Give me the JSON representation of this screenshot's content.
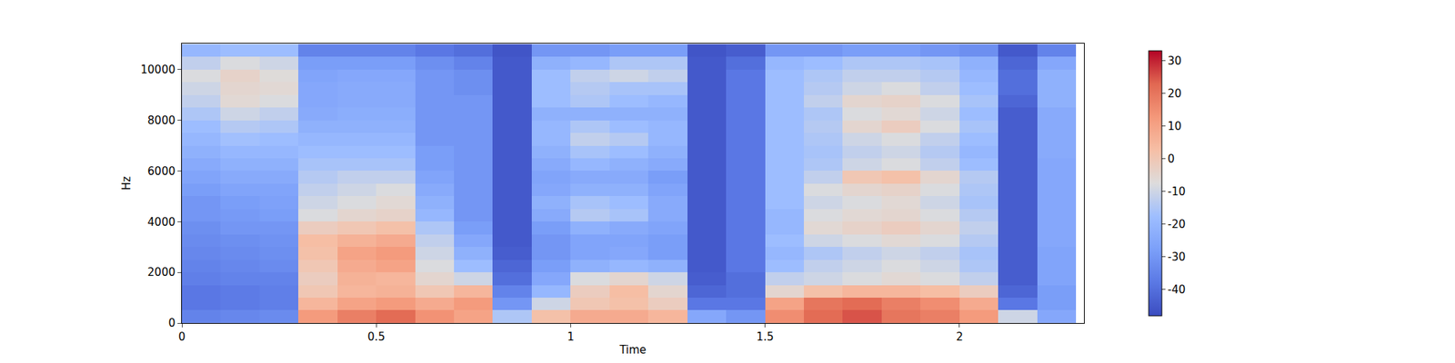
{
  "chart_data": {
    "type": "heatmap",
    "x_label": "Time",
    "y_label": "Hz",
    "x": [
      0.05,
      0.15,
      0.25,
      0.35,
      0.45,
      0.55,
      0.65,
      0.75,
      0.85,
      0.95,
      1.05,
      1.15,
      1.25,
      1.35,
      1.45,
      1.55,
      1.65,
      1.75,
      1.85,
      1.95,
      2.05,
      2.15,
      2.25
    ],
    "y": [
      250,
      750,
      1250,
      1750,
      2250,
      2750,
      3250,
      3750,
      4250,
      4750,
      5250,
      5750,
      6250,
      6750,
      7250,
      7750,
      8250,
      8750,
      9250,
      9750,
      10250,
      10750
    ],
    "cells_by_time": [
      [
        -35,
        -38,
        -38,
        -36,
        -35,
        -34,
        -33,
        -32,
        -30,
        -30,
        -28,
        -26,
        -24,
        -22,
        -20,
        -18,
        -15,
        -12,
        -10,
        -8,
        -12,
        -20
      ],
      [
        -34,
        -37,
        -37,
        -35,
        -34,
        -33,
        -32,
        -30,
        -29,
        -28,
        -26,
        -24,
        -22,
        -20,
        -17,
        -14,
        -10,
        -6,
        -5,
        -4,
        -8,
        -18
      ],
      [
        -33,
        -36,
        -36,
        -35,
        -33,
        -32,
        -31,
        -30,
        -28,
        -27,
        -26,
        -24,
        -22,
        -20,
        -18,
        -15,
        -12,
        -8,
        -6,
        -7,
        -10,
        -18
      ],
      [
        12,
        5,
        0,
        -2,
        0,
        2,
        3,
        -2,
        -8,
        -10,
        -12,
        -14,
        -16,
        -18,
        -20,
        -22,
        -24,
        -25,
        -25,
        -26,
        -28,
        -35
      ],
      [
        18,
        10,
        5,
        6,
        8,
        10,
        6,
        0,
        -5,
        -8,
        -10,
        -12,
        -16,
        -18,
        -20,
        -22,
        -23,
        -24,
        -24,
        -25,
        -28,
        -35
      ],
      [
        22,
        12,
        6,
        5,
        10,
        12,
        8,
        2,
        -4,
        -6,
        -8,
        -12,
        -16,
        -18,
        -20,
        -22,
        -23,
        -24,
        -24,
        -25,
        -28,
        -35
      ],
      [
        14,
        8,
        0,
        -5,
        -8,
        -10,
        -12,
        -15,
        -20,
        -22,
        -24,
        -26,
        -28,
        -28,
        -30,
        -30,
        -30,
        -30,
        -30,
        -30,
        -32,
        -38
      ],
      [
        10,
        12,
        5,
        -10,
        -18,
        -22,
        -25,
        -28,
        -30,
        -30,
        -30,
        -30,
        -30,
        -30,
        -30,
        -30,
        -30,
        -30,
        -32,
        -32,
        -35,
        -40
      ],
      [
        -15,
        -30,
        -35,
        -40,
        -42,
        -44,
        -45,
        -45,
        -45,
        -45,
        -45,
        -45,
        -45,
        -45,
        -45,
        -45,
        -45,
        -45,
        -45,
        -45,
        -45,
        -46
      ],
      [
        2,
        -10,
        -20,
        -25,
        -28,
        -30,
        -30,
        -28,
        -24,
        -22,
        -25,
        -26,
        -24,
        -22,
        -20,
        -20,
        -22,
        -18,
        -18,
        -18,
        -22,
        -30
      ],
      [
        8,
        0,
        -2,
        -8,
        -22,
        -26,
        -26,
        -22,
        -14,
        -16,
        -22,
        -24,
        -20,
        -16,
        -12,
        -15,
        -22,
        -15,
        -14,
        -12,
        -20,
        -30
      ],
      [
        8,
        2,
        3,
        -5,
        -20,
        -25,
        -26,
        -24,
        -16,
        -18,
        -22,
        -24,
        -22,
        -18,
        -14,
        -18,
        -22,
        -18,
        -16,
        -10,
        -15,
        -28
      ],
      [
        5,
        -2,
        -5,
        -10,
        -22,
        -28,
        -28,
        -26,
        -24,
        -24,
        -26,
        -28,
        -24,
        -22,
        -20,
        -20,
        -22,
        -20,
        -16,
        -12,
        -15,
        -28
      ],
      [
        -25,
        -38,
        -42,
        -44,
        -45,
        -45,
        -45,
        -45,
        -45,
        -45,
        -45,
        -45,
        -45,
        -45,
        -45,
        -45,
        -45,
        -45,
        -45,
        -45,
        -45,
        -46
      ],
      [
        -30,
        -38,
        -40,
        -40,
        -38,
        -38,
        -38,
        -38,
        -38,
        -38,
        -38,
        -38,
        -38,
        -38,
        -38,
        -38,
        -38,
        -38,
        -38,
        -38,
        -40,
        -44
      ],
      [
        15,
        10,
        -5,
        -12,
        -18,
        -20,
        -18,
        -20,
        -20,
        -18,
        -18,
        -18,
        -18,
        -18,
        -18,
        -18,
        -18,
        -18,
        -18,
        -18,
        -20,
        -30
      ],
      [
        22,
        20,
        2,
        -10,
        -12,
        -15,
        -10,
        -6,
        -8,
        -10,
        -8,
        -12,
        -15,
        -16,
        -15,
        -14,
        -15,
        -12,
        -14,
        -15,
        -18,
        -30
      ],
      [
        25,
        22,
        5,
        -8,
        -10,
        -12,
        -8,
        -4,
        -6,
        -8,
        -5,
        0,
        -10,
        -12,
        -10,
        -5,
        -8,
        -5,
        -10,
        -12,
        -15,
        -28
      ],
      [
        20,
        18,
        5,
        -6,
        -8,
        -10,
        -6,
        -2,
        -5,
        -6,
        -4,
        2,
        -8,
        -10,
        -8,
        -2,
        -6,
        -4,
        -8,
        -12,
        -15,
        -28
      ],
      [
        18,
        15,
        3,
        -8,
        -10,
        -12,
        -8,
        -5,
        -8,
        -10,
        -8,
        -5,
        -12,
        -14,
        -12,
        -8,
        -10,
        -8,
        -12,
        -14,
        -16,
        -30
      ],
      [
        12,
        8,
        -2,
        -12,
        -15,
        -16,
        -14,
        -12,
        -14,
        -16,
        -15,
        -14,
        -18,
        -20,
        -18,
        -16,
        -18,
        -16,
        -18,
        -20,
        -22,
        -32
      ],
      [
        -10,
        -38,
        -42,
        -44,
        -44,
        -44,
        -44,
        -44,
        -44,
        -44,
        -44,
        -44,
        -44,
        -44,
        -44,
        -44,
        -44,
        -42,
        -40,
        -40,
        -42,
        -45
      ],
      [
        -25,
        -28,
        -28,
        -26,
        -26,
        -26,
        -25,
        -25,
        -25,
        -25,
        -25,
        -25,
        -25,
        -24,
        -24,
        -24,
        -24,
        -22,
        -22,
        -22,
        -25,
        -35
      ]
    ],
    "xlim": [
      0,
      2.32
    ],
    "ylim": [
      0,
      11025
    ],
    "xticks": [
      0,
      0.5,
      1,
      1.5,
      2
    ],
    "yticks": [
      0,
      2000,
      4000,
      6000,
      8000,
      10000
    ],
    "colorbar_range": [
      -48,
      33
    ],
    "colorbar_ticks": [
      -40,
      -30,
      -20,
      -10,
      0,
      10,
      20,
      30
    ]
  }
}
